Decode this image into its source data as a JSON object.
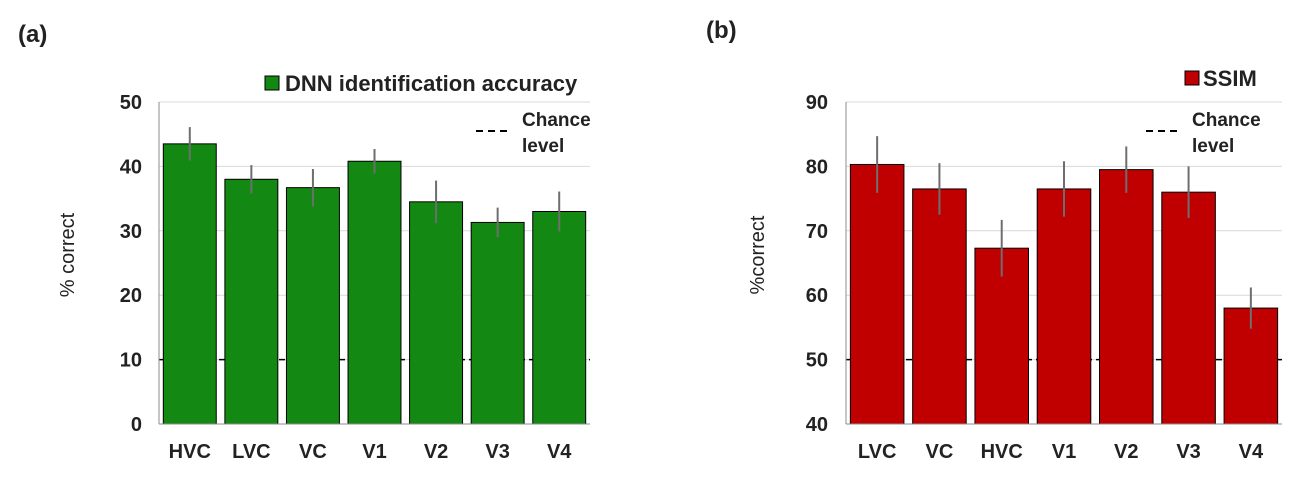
{
  "chart_data": [
    {
      "panel_label": "(a)",
      "type": "bar",
      "categories": [
        "HVC",
        "LVC",
        "VC",
        "V1",
        "V2",
        "V3",
        "V4"
      ],
      "series": [
        {
          "name": "DNN identification accuracy",
          "color": "#138913",
          "values": [
            43.5,
            38,
            36.7,
            40.8,
            34.5,
            31.3,
            33
          ],
          "error": [
            2.6,
            2.2,
            2.9,
            1.9,
            3.3,
            2.3,
            3.1
          ]
        }
      ],
      "ylabel": "% correct",
      "ylim": [
        0,
        50
      ],
      "yticks": [
        0,
        10,
        20,
        30,
        40,
        50
      ],
      "grid": true,
      "legend_position": "top-right",
      "reference_line": {
        "value": 10,
        "label_line1": "Chance",
        "label_line2": "level"
      }
    },
    {
      "panel_label": "(b)",
      "type": "bar",
      "categories": [
        "LVC",
        "VC",
        "HVC",
        "V1",
        "V2",
        "V3",
        "V4"
      ],
      "series": [
        {
          "name": "SSIM",
          "color": "#c00000",
          "values": [
            80.3,
            76.5,
            67.3,
            76.5,
            79.5,
            76,
            58
          ],
          "error": [
            4.4,
            4,
            4.4,
            4.3,
            3.6,
            4,
            3.2
          ]
        }
      ],
      "ylabel": "%correct",
      "ylim": [
        40,
        90
      ],
      "yticks": [
        40,
        50,
        60,
        70,
        80,
        90
      ],
      "grid": true,
      "legend_position": "top-right",
      "reference_line": {
        "value": 50,
        "label_line1": "Chance",
        "label_line2": "level"
      }
    }
  ]
}
